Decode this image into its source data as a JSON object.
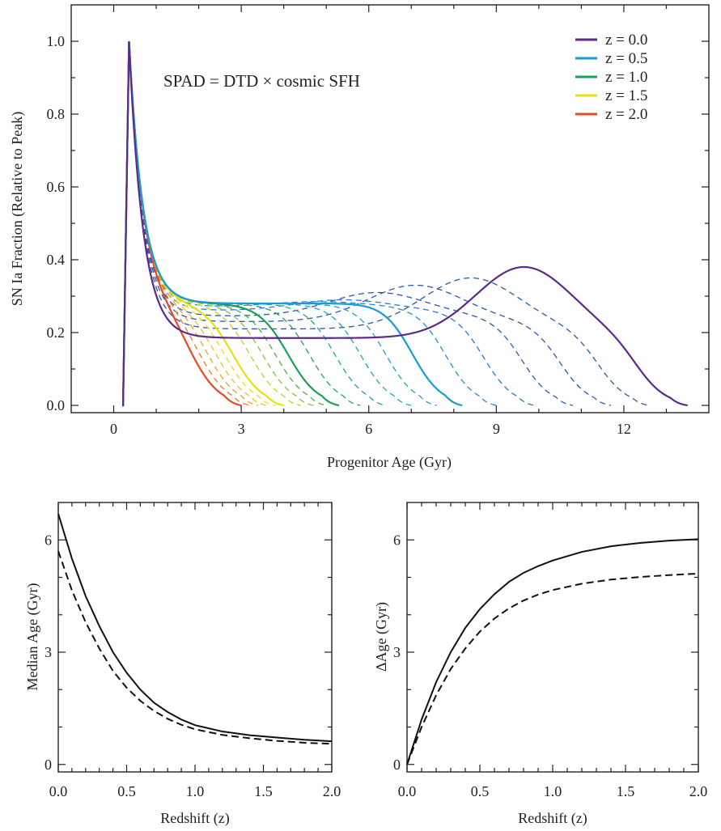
{
  "chart_data": [
    {
      "type": "line",
      "panel": "top",
      "xlabel": "Progenitor Age (Gyr)",
      "ylabel": "SN Ia Fraction (Relative to Peak)",
      "annotation": "SPAD = DTD × cosmic SFH",
      "xlim": [
        -1,
        14
      ],
      "ylim": [
        -0.02,
        1.1
      ],
      "xticks": [
        0,
        3,
        6,
        9,
        12
      ],
      "xtick_labels": [
        "0",
        "3",
        "6",
        "9",
        "12"
      ],
      "yticks": [
        0.0,
        0.2,
        0.4,
        0.6,
        0.8,
        1.0
      ],
      "ytick_labels": [
        "0.0",
        "0.2",
        "0.4",
        "0.6",
        "0.8",
        "1.0"
      ],
      "legend_position": "top-right",
      "series": [
        {
          "name": "z = 0.0",
          "z": 0.0,
          "color": "#5b2a8c",
          "style": "solid",
          "age_max": 13.5,
          "plateau": 0.185,
          "hump": 0.38,
          "hump_age": 9.65
        },
        {
          "name": "z = 0.5",
          "z": 0.5,
          "color": "#1a9ad6",
          "style": "solid",
          "age_max": 8.2,
          "plateau": 0.28,
          "hump": 0.28,
          "hump_age": 4.2
        },
        {
          "name": "z = 1.0",
          "z": 1.0,
          "color": "#1aa05a",
          "style": "solid",
          "age_max": 5.3,
          "plateau": 0.28,
          "hump": 0.0,
          "hump_age": 0
        },
        {
          "name": "z = 1.5",
          "z": 1.5,
          "color": "#e8e010",
          "style": "solid",
          "age_max": 4.0,
          "plateau": 0.28,
          "hump": 0.0,
          "hump_age": 0
        },
        {
          "name": "z = 2.0",
          "z": 2.0,
          "color": "#e84a20",
          "style": "solid",
          "age_max": 3.0,
          "plateau": 0.28,
          "hump": 0.0,
          "hump_age": 0
        }
      ],
      "dashed_intermediate": [
        {
          "color": "#2a5aa8",
          "age_max": 12.6,
          "plateau": 0.21,
          "hump": 0.35,
          "hump_age": 8.4
        },
        {
          "color": "#2a5aa8",
          "age_max": 11.7,
          "plateau": 0.23,
          "hump": 0.33,
          "hump_age": 7.1
        },
        {
          "color": "#2a5aa8",
          "age_max": 10.8,
          "plateau": 0.245,
          "hump": 0.31,
          "hump_age": 6.2
        },
        {
          "color": "#2a7ac8",
          "age_max": 9.9,
          "plateau": 0.26,
          "hump": 0.29,
          "hump_age": 5.4
        },
        {
          "color": "#2a8ad0",
          "age_max": 9.0,
          "plateau": 0.27,
          "hump": 0.285,
          "hump_age": 4.8
        },
        {
          "color": "#20a0c8",
          "age_max": 7.6,
          "plateau": 0.28,
          "hump": 0.0,
          "hump_age": 0
        },
        {
          "color": "#20a8b8",
          "age_max": 7.0,
          "plateau": 0.28,
          "hump": 0.0,
          "hump_age": 0
        },
        {
          "color": "#20a898",
          "age_max": 6.4,
          "plateau": 0.28,
          "hump": 0.0,
          "hump_age": 0
        },
        {
          "color": "#20a070",
          "age_max": 5.8,
          "plateau": 0.28,
          "hump": 0.0,
          "hump_age": 0
        },
        {
          "color": "#50b040",
          "age_max": 5.0,
          "plateau": 0.28,
          "hump": 0.0,
          "hump_age": 0
        },
        {
          "color": "#90c030",
          "age_max": 4.7,
          "plateau": 0.28,
          "hump": 0.0,
          "hump_age": 0
        },
        {
          "color": "#c0d020",
          "age_max": 4.4,
          "plateau": 0.28,
          "hump": 0.0,
          "hump_age": 0
        },
        {
          "color": "#e8e020",
          "age_max": 3.8,
          "plateau": 0.28,
          "hump": 0.0,
          "hump_age": 0
        },
        {
          "color": "#f0c020",
          "age_max": 3.6,
          "plateau": 0.28,
          "hump": 0.0,
          "hump_age": 0
        },
        {
          "color": "#f0a020",
          "age_max": 3.4,
          "plateau": 0.28,
          "hump": 0.0,
          "hump_age": 0
        },
        {
          "color": "#f07a20",
          "age_max": 3.2,
          "plateau": 0.28,
          "hump": 0.0,
          "hump_age": 0
        }
      ]
    },
    {
      "type": "line",
      "panel": "bottom-left",
      "xlabel": "Redshift (z)",
      "ylabel": "Median Age (Gyr)",
      "xlim": [
        0,
        2
      ],
      "ylim": [
        -0.2,
        7
      ],
      "xticks": [
        0.0,
        0.5,
        1.0,
        1.5,
        2.0
      ],
      "xtick_labels": [
        "0.0",
        "0.5",
        "1.0",
        "1.5",
        "2.0"
      ],
      "yticks": [
        0,
        3,
        6
      ],
      "ytick_labels": [
        "0",
        "3",
        "6"
      ],
      "series": [
        {
          "style": "solid",
          "x": [
            0.0,
            0.1,
            0.2,
            0.3,
            0.4,
            0.5,
            0.6,
            0.7,
            0.8,
            0.9,
            1.0,
            1.2,
            1.4,
            1.6,
            1.8,
            2.0
          ],
          "y": [
            6.7,
            5.5,
            4.5,
            3.7,
            3.0,
            2.45,
            2.0,
            1.65,
            1.4,
            1.2,
            1.05,
            0.88,
            0.78,
            0.72,
            0.66,
            0.62
          ]
        },
        {
          "style": "dashed",
          "x": [
            0.0,
            0.1,
            0.2,
            0.3,
            0.4,
            0.5,
            0.6,
            0.7,
            0.8,
            0.9,
            1.0,
            1.2,
            1.4,
            1.6,
            1.8,
            2.0
          ],
          "y": [
            5.7,
            4.65,
            3.8,
            3.1,
            2.5,
            2.05,
            1.7,
            1.43,
            1.22,
            1.06,
            0.94,
            0.79,
            0.7,
            0.63,
            0.58,
            0.55
          ]
        }
      ]
    },
    {
      "type": "line",
      "panel": "bottom-right",
      "xlabel": "Redshift (z)",
      "ylabel": "ΔAge (Gyr)",
      "xlim": [
        0,
        2
      ],
      "ylim": [
        -0.2,
        7
      ],
      "xticks": [
        0.0,
        0.5,
        1.0,
        1.5,
        2.0
      ],
      "xtick_labels": [
        "0.0",
        "0.5",
        "1.0",
        "1.5",
        "2.0"
      ],
      "yticks": [
        0,
        3,
        6
      ],
      "ytick_labels": [
        "0",
        "3",
        "6"
      ],
      "series": [
        {
          "style": "solid",
          "x": [
            0.0,
            0.1,
            0.2,
            0.3,
            0.4,
            0.5,
            0.6,
            0.7,
            0.8,
            0.9,
            1.0,
            1.2,
            1.4,
            1.6,
            1.8,
            2.0
          ],
          "y": [
            0.0,
            1.2,
            2.2,
            3.0,
            3.65,
            4.15,
            4.55,
            4.88,
            5.12,
            5.3,
            5.45,
            5.68,
            5.83,
            5.92,
            5.98,
            6.02
          ]
        },
        {
          "style": "dashed",
          "x": [
            0.0,
            0.1,
            0.2,
            0.3,
            0.4,
            0.5,
            0.6,
            0.7,
            0.8,
            0.9,
            1.0,
            1.2,
            1.4,
            1.6,
            1.8,
            2.0
          ],
          "y": [
            0.0,
            1.0,
            1.85,
            2.55,
            3.1,
            3.55,
            3.9,
            4.17,
            4.38,
            4.54,
            4.66,
            4.83,
            4.94,
            5.01,
            5.06,
            5.1
          ]
        }
      ]
    }
  ]
}
